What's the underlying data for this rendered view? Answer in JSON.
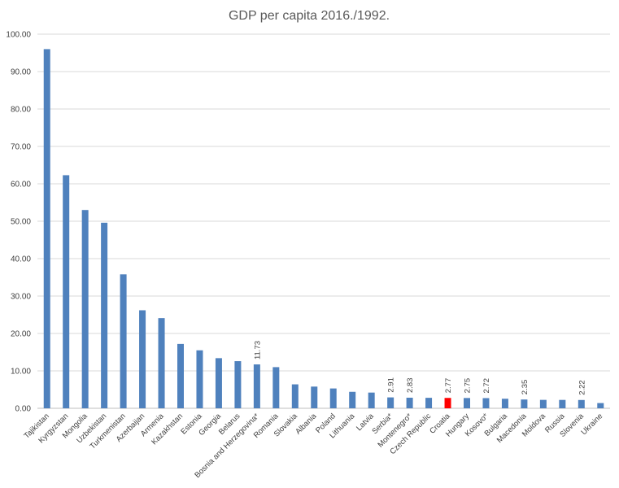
{
  "chart_data": {
    "type": "bar",
    "title": "GDP per capita 2016./1992.",
    "xlabel": "",
    "ylabel": "",
    "ylim": [
      0,
      100
    ],
    "yticks": [
      "0.00",
      "10.00",
      "20.00",
      "30.00",
      "40.00",
      "50.00",
      "60.00",
      "70.00",
      "80.00",
      "90.00",
      "100.00"
    ],
    "grid": true,
    "legend": "none",
    "colors": {
      "default": "#4f81bd",
      "highlight": "#ff0000"
    },
    "categories": [
      "Tajikistan",
      "Kyrgyzstan",
      "Mongolia",
      "Uzbekistan",
      "Turkmenistan",
      "Azerbaijan",
      "Armenia",
      "Kazakhstan",
      "Estonia",
      "Georgia",
      "Belarus",
      "Bosnia and Herzegovina*",
      "Romania",
      "Slovakia",
      "Albania",
      "Poland",
      "Lithuania",
      "Latvia",
      "Serbia*",
      "Montenegro*",
      "Czech Republic",
      "Croatia",
      "Hungary",
      "Kosovo*",
      "Bulgaria",
      "Macedonia",
      "Moldova",
      "Russia",
      "Slovenia",
      "Ukraine"
    ],
    "values": [
      96.0,
      62.3,
      53.0,
      49.6,
      35.8,
      26.2,
      24.1,
      17.2,
      15.5,
      13.4,
      12.6,
      11.73,
      11.0,
      6.4,
      5.8,
      5.3,
      4.4,
      4.2,
      2.91,
      2.83,
      2.8,
      2.77,
      2.75,
      2.72,
      2.55,
      2.35,
      2.25,
      2.24,
      2.22,
      1.4
    ],
    "highlight_category": "Croatia",
    "data_labels": [
      {
        "category": "Bosnia and Herzegovina*",
        "text": "11.73"
      },
      {
        "category": "Serbia*",
        "text": "2.91"
      },
      {
        "category": "Montenegro*",
        "text": "2.83"
      },
      {
        "category": "Croatia",
        "text": "2.77"
      },
      {
        "category": "Hungary",
        "text": "2.75"
      },
      {
        "category": "Kosovo*",
        "text": "2.72"
      },
      {
        "category": "Macedonia",
        "text": "2.35"
      },
      {
        "category": "Slovenia",
        "text": "2.22"
      }
    ]
  }
}
